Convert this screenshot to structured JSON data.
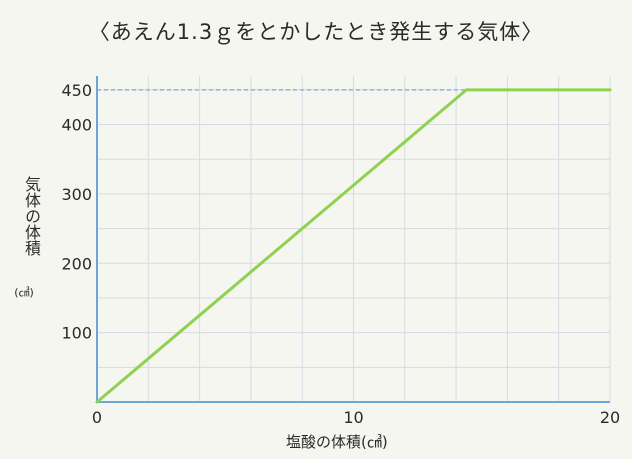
{
  "chart_data": {
    "type": "line",
    "title": "〈あえん1.3ｇをとかしたとき発生する気体〉",
    "xlabel": "塩酸の体積(㎤)",
    "ylabel": "気体の体積",
    "ylabel_unit": "(㎤)",
    "xlim": [
      0,
      20
    ],
    "ylim": [
      0,
      470
    ],
    "x_ticks": [
      "0",
      "10",
      "20"
    ],
    "y_ticks": [
      "100",
      "200",
      "300",
      "400",
      "450"
    ],
    "grid": true,
    "series": [
      {
        "color": "#8ed24f",
        "points": [
          {
            "x": 0,
            "y": 0
          },
          {
            "x": 14.4,
            "y": 450
          },
          {
            "x": 20,
            "y": 450
          }
        ]
      }
    ],
    "reference_lines": [
      {
        "axis": "y",
        "value": 450,
        "style": "dashed",
        "color": "#8fb4d6"
      }
    ],
    "colors": {
      "grid": "#d6dbe2",
      "axis": "#6aa7d8",
      "line": "#8ed24f",
      "background": "#f6f6f1"
    }
  }
}
